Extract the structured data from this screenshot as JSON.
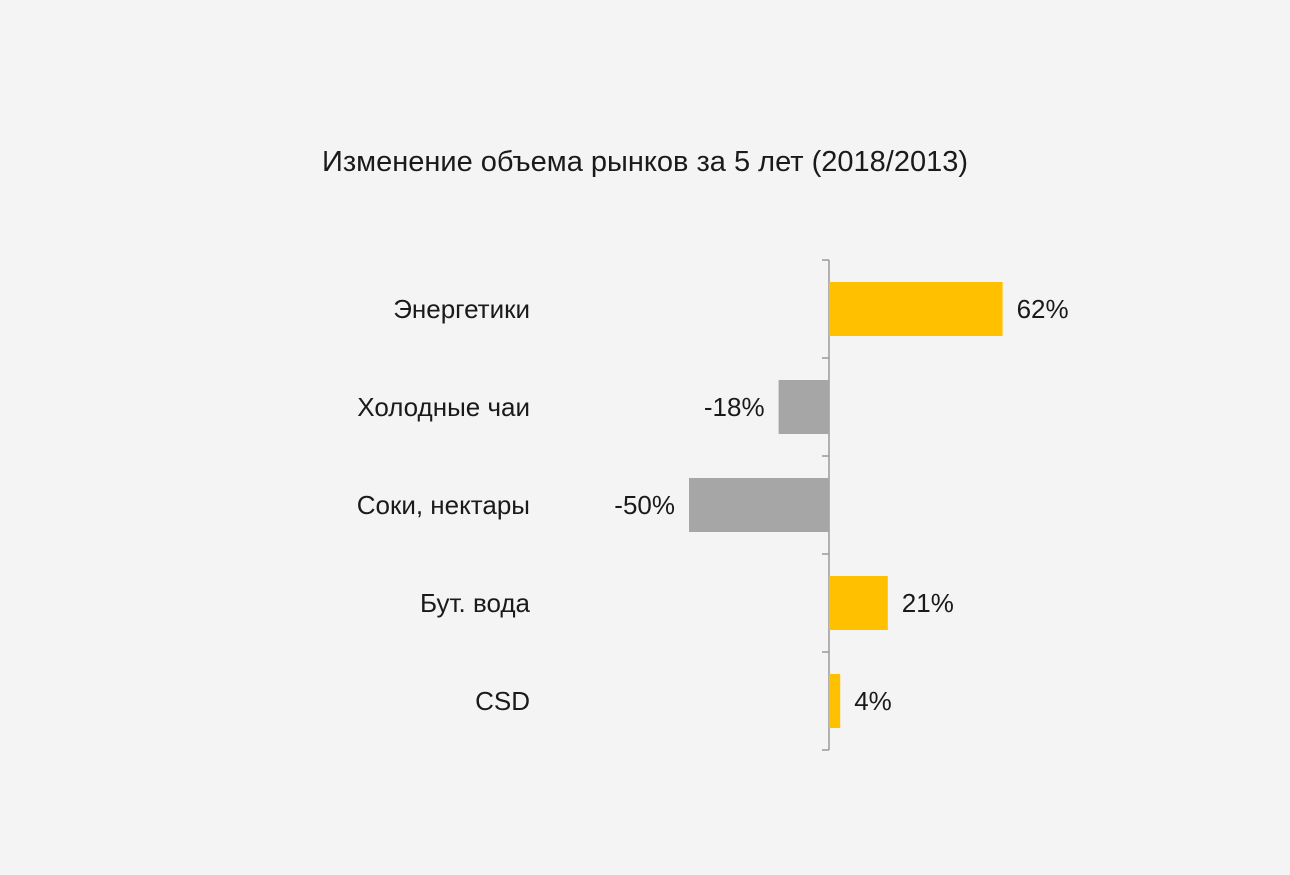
{
  "chart_data": {
    "type": "bar",
    "orientation": "horizontal",
    "title": "Изменение объема рынков за 5 лет (2018/2013)",
    "categories": [
      "Энергетики",
      "Холодные чаи",
      "Соки, нектары",
      "Бут. вода",
      "CSD"
    ],
    "values": [
      62,
      -18,
      -50,
      21,
      4
    ],
    "data_labels": [
      "62%",
      "-18%",
      "-50%",
      "21%",
      "4%"
    ],
    "unit": "%",
    "xlim": [
      -50,
      62
    ],
    "grid": false,
    "legend": "none",
    "colors": {
      "positive": "#ffc000",
      "negative": "#a6a6a6",
      "axis": "#9a9a9a",
      "text": "#1a1a1a",
      "background": "#f4f4f4"
    }
  }
}
